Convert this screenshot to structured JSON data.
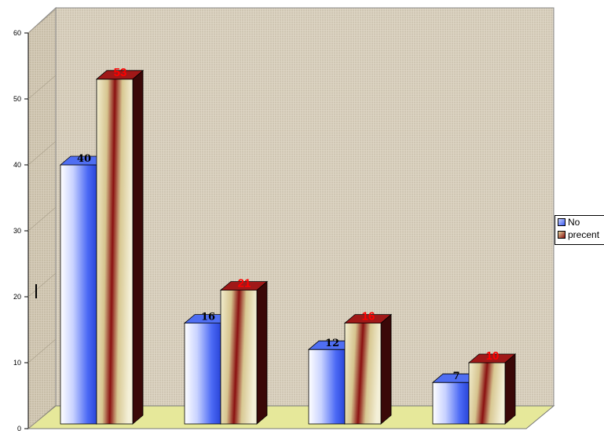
{
  "chart_data": {
    "type": "bar",
    "categories": [
      "",
      "",
      "",
      ""
    ],
    "series": [
      {
        "name": "No",
        "values": [
          40,
          16,
          12,
          7
        ],
        "color": "#3b5bf0"
      },
      {
        "name": "precent",
        "values": [
          53,
          21,
          16,
          10
        ],
        "color": "#8b1010"
      }
    ],
    "data_labels": {
      "No": [
        "40",
        "16",
        "12",
        "7"
      ],
      "precent": [
        "53",
        "21",
        "16",
        "10"
      ]
    },
    "yticks": [
      "0",
      "10",
      "20",
      "30",
      "40",
      "50",
      "60"
    ],
    "ylim": [
      0,
      60
    ],
    "title": "",
    "xlabel": "",
    "ylabel": "",
    "legend_position": "right",
    "style": "3d-clustered-column",
    "wall_color": "#d8cfbd",
    "floor_color": "#e8e89a",
    "label_colors": {
      "No": "#000000",
      "precent": "#ff0000"
    }
  }
}
